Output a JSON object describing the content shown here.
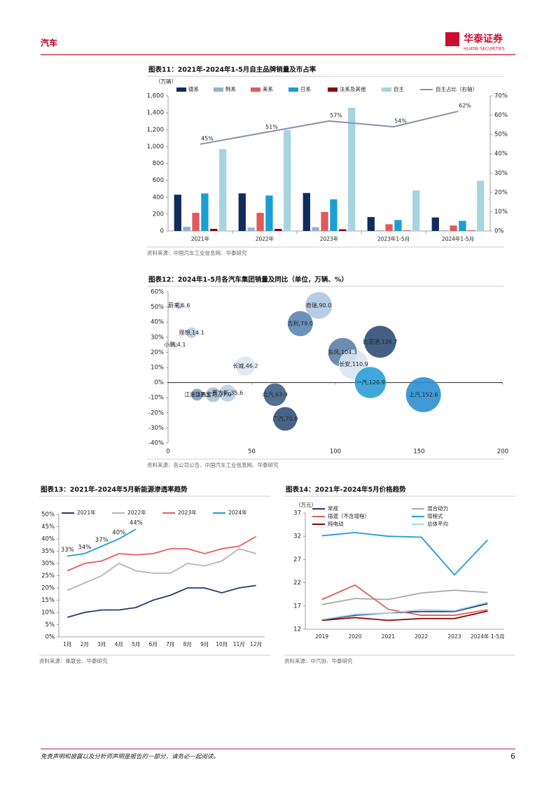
{
  "header": {
    "section": "汽车",
    "brand": "华泰证券",
    "brand_en": "HUATAI SECURITIES"
  },
  "footer": {
    "disclaimer": "免责声明和披露以及分析师声明是报告的一部分，请务必一起阅读。",
    "page": "6"
  },
  "chart_data": [
    {
      "type": "bar",
      "title": "图表11：2021年-2024年1-5月自主品牌销量及市占率",
      "y_label": "（万辆）",
      "source": "资料来源：中国汽车工业信息网、华泰研究",
      "categories": [
        "2021年",
        "2022年",
        "2023年",
        "2023年1-5月",
        "2024年1-5月"
      ],
      "series": [
        {
          "name": "德系",
          "color": "#0e2d5c",
          "values": [
            430,
            445,
            450,
            165,
            160
          ]
        },
        {
          "name": "韩系",
          "color": "#8fb4cf",
          "values": [
            50,
            40,
            45,
            10,
            10
          ]
        },
        {
          "name": "美系",
          "color": "#e05a5a",
          "values": [
            215,
            215,
            225,
            80,
            65
          ]
        },
        {
          "name": "日系",
          "color": "#1a9ed4",
          "values": [
            445,
            420,
            375,
            130,
            120
          ]
        },
        {
          "name": "法系及其他",
          "color": "#8b0000",
          "values": [
            25,
            25,
            20,
            5,
            5
          ]
        },
        {
          "name": "自主",
          "color": "#a8d4e0",
          "values": [
            970,
            1195,
            1460,
            480,
            595
          ]
        },
        {
          "name": "自主占比（右轴）",
          "color": "#8a8fa8",
          "axis": "y2",
          "values": [
            45,
            51,
            57,
            54,
            62
          ],
          "value_labels": [
            "45%",
            "51%",
            "57%",
            "54%",
            "62%"
          ]
        }
      ],
      "ylim": [
        0,
        1600
      ],
      "yticks": [
        0,
        200,
        400,
        600,
        800,
        {
          "value": 1000,
          "label": "1,000"
        },
        {
          "value": 1200,
          "label": "1,200"
        },
        {
          "value": 1400,
          "label": "1,400"
        },
        {
          "value": 1600,
          "label": "1,600"
        }
      ],
      "y2lim": [
        0,
        70
      ],
      "y2ticks": [
        {
          "value": 0,
          "label": "0%"
        },
        {
          "value": 10,
          "label": "10%"
        },
        {
          "value": 20,
          "label": "20%"
        },
        {
          "value": 30,
          "label": "30%"
        },
        {
          "value": 40,
          "label": "40%"
        },
        {
          "value": 50,
          "label": "50%"
        },
        {
          "value": 60,
          "label": "60%"
        },
        {
          "value": 70,
          "label": "70%"
        }
      ],
      "grid": false
    },
    {
      "type": "scatter",
      "title": "图表12：2024年1-5月各汽车集团销量及同比（单位，万辆、%）",
      "source": "资料来源：各公司公告、中国汽车工业信息网、华泰研究",
      "labels": [
        "蔚来,6.6",
        "理想,14.1",
        "小鹏,4.1",
        "长城,46.2",
        "赛力斯,35.6",
        "江淮,17.3",
        "华晨宝马,27.0",
        "北汽,63.9",
        "广汽,70.0",
        "奇瑞,90.0",
        "吉利,79.0",
        "东风,104.3",
        "长安,110.9",
        "比亚迪,126.7",
        "一汽,120.9",
        "上汽,152.6"
      ],
      "x": [
        6.6,
        14.1,
        4.1,
        46.2,
        35.6,
        17.3,
        27.0,
        63.9,
        70.0,
        90.0,
        79.0,
        104.3,
        110.9,
        126.7,
        120.9,
        152.6
      ],
      "values": [
        51,
        33,
        25,
        11,
        -7,
        -8,
        -8,
        -8,
        -24,
        51,
        39,
        20,
        12,
        27,
        0,
        -8
      ],
      "colors": [
        "#b8cde3",
        "#b8cde3",
        "#c9d9ea",
        "#dce7f2",
        "#b8cde3",
        "#7d9dc0",
        "#a9c0da",
        "#3e5f86",
        "#34527a",
        "#b0c8e2",
        "#5d85b3",
        "#5c7fa8",
        "#d8e5f1",
        "#2f4f77",
        "#2a9fd6",
        "#2b8fd0"
      ],
      "xlim": [
        0,
        200
      ],
      "xticks": [
        0,
        50,
        100,
        150,
        200
      ],
      "ylim": [
        -40,
        60
      ],
      "yticks": [
        {
          "value": -40,
          "label": "-40%"
        },
        {
          "value": -30,
          "label": "-30%"
        },
        {
          "value": -20,
          "label": "-20%"
        },
        {
          "value": -10,
          "label": "-10%"
        },
        {
          "value": 0,
          "label": "0%"
        },
        {
          "value": 10,
          "label": "10%"
        },
        {
          "value": 20,
          "label": "20%"
        },
        {
          "value": 30,
          "label": "30%"
        },
        {
          "value": 40,
          "label": "40%"
        },
        {
          "value": 50,
          "label": "50%"
        },
        {
          "value": 60,
          "label": "60%"
        }
      ],
      "grid": false
    },
    {
      "type": "line",
      "title": "图表13：2021年-2024年5月新能源渗透率趋势",
      "source": "资料来源：乘联会、华泰研究",
      "categories": [
        "1月",
        "2月",
        "3月",
        "4月",
        "5月",
        "6月",
        "7月",
        "8月",
        "9月",
        "10月",
        "11月",
        "12月"
      ],
      "series": [
        {
          "name": "2021年",
          "color": "#1f3b73",
          "values": [
            8,
            10,
            11,
            11,
            12,
            15,
            17,
            20,
            20,
            18,
            20,
            21
          ]
        },
        {
          "name": "2022年",
          "color": "#b5b5b5",
          "values": [
            19,
            22,
            25,
            30,
            27,
            26,
            26,
            30,
            29,
            31,
            36,
            34
          ]
        },
        {
          "name": "2023年",
          "color": "#e85b5b",
          "values": [
            27,
            30,
            31,
            34,
            33.5,
            34,
            36,
            36,
            34,
            36,
            37,
            41
          ]
        },
        {
          "name": "2024年",
          "color": "#1a9ed4",
          "values": [
            33,
            34,
            37,
            40,
            44,
            null,
            null,
            null,
            null,
            null,
            null,
            null
          ],
          "value_labels": [
            "33%",
            "34%",
            "37%",
            "40%",
            "44%",
            null,
            null,
            null,
            null,
            null,
            null,
            null
          ]
        }
      ],
      "ylim": [
        0,
        50
      ],
      "yticks": [
        {
          "value": 0,
          "label": "0%"
        },
        {
          "value": 5,
          "label": "5%"
        },
        {
          "value": 10,
          "label": "10%"
        },
        {
          "value": 15,
          "label": "15%"
        },
        {
          "value": 20,
          "label": "20%"
        },
        {
          "value": 25,
          "label": "25%"
        },
        {
          "value": 30,
          "label": "30%"
        },
        {
          "value": 35,
          "label": "35%"
        },
        {
          "value": 40,
          "label": "40%"
        },
        {
          "value": 45,
          "label": "45%"
        },
        {
          "value": 50,
          "label": "50%"
        }
      ],
      "grid": false
    },
    {
      "type": "line",
      "title": "图表14：2021年-2024年5月价格趋势",
      "y_label": "（万元）",
      "source": "资料来源：中汽协、华泰研究",
      "categories": [
        "2019",
        "2020",
        "2021",
        "2022",
        "2023",
        "2024年 1-5月"
      ],
      "series": [
        {
          "name": "常规",
          "color": "#1f3b73",
          "values": [
            14.0,
            15.0,
            15.5,
            15.8,
            15.8,
            17.5
          ]
        },
        {
          "name": "混合动力",
          "color": "#a9a9a9",
          "values": [
            17.3,
            18.6,
            18.4,
            19.8,
            20.4,
            19.9
          ]
        },
        {
          "name": "插混（不含增程）",
          "color": "#e85b5b",
          "values": [
            18.4,
            21.5,
            16.3,
            15.0,
            15.0,
            16.2
          ]
        },
        {
          "name": "增程式",
          "color": "#1a9ed4",
          "values": [
            32.1,
            32.8,
            32.0,
            31.8,
            23.7,
            31.2
          ]
        },
        {
          "name": "纯电动",
          "color": "#8b0000",
          "values": [
            13.9,
            14.5,
            13.9,
            14.3,
            14.3,
            15.9
          ]
        },
        {
          "name": "总体平均",
          "color": "#a8d4ea",
          "values": [
            14.1,
            15.2,
            15.5,
            16.2,
            16.0,
            17.8
          ]
        }
      ],
      "ylim": [
        12,
        37
      ],
      "yticks": [
        12,
        17,
        22,
        27,
        32,
        37
      ],
      "grid": false
    }
  ]
}
